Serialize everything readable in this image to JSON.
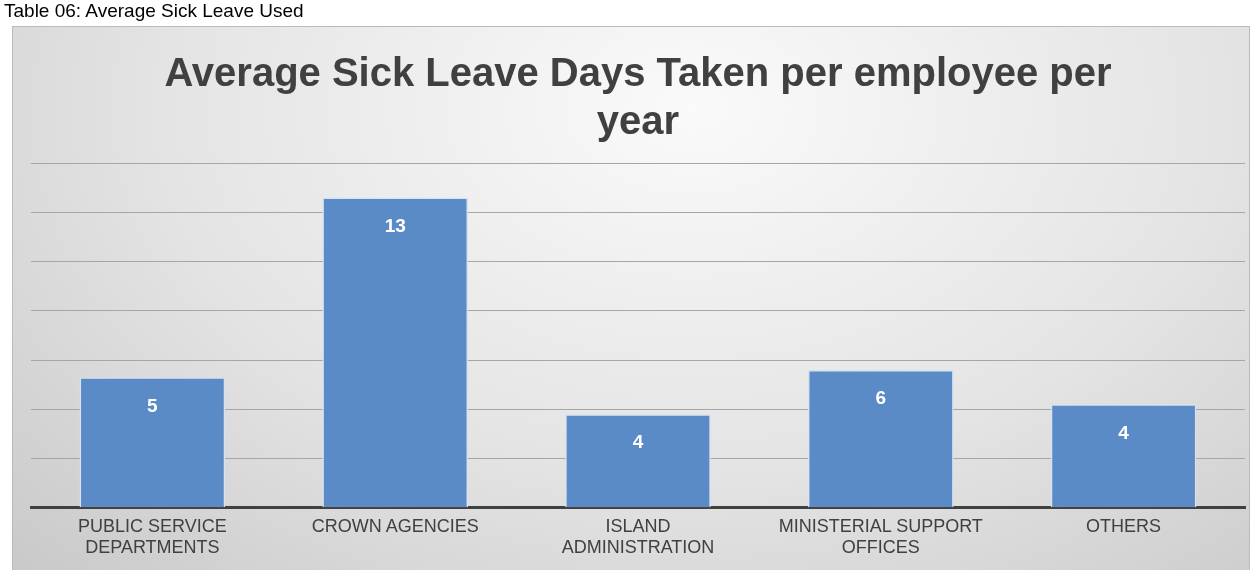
{
  "chart_data": {
    "type": "bar",
    "title": "Average Sick Leave Days Taken per employee per year",
    "categories": [
      "PUBLIC SERVICE DEPARTMENTS",
      "CROWN AGENCIES",
      "ISLAND ADMINISTRATION",
      "MINISTERIAL SUPPORT OFFICES",
      "OTHERS"
    ],
    "values": [
      5.3,
      12.6,
      3.8,
      5.6,
      4.2
    ],
    "value_labels": [
      "5",
      "13",
      "4",
      "6",
      "4"
    ],
    "color": "#5b8bc6",
    "ylim": [
      0,
      14
    ],
    "yticks": [
      {
        "value": 0,
        "label": null
      },
      {
        "value": 2,
        "label": null
      },
      {
        "value": 4,
        "label": null
      },
      {
        "value": 6,
        "label": null
      },
      {
        "value": 8,
        "label": null
      },
      {
        "value": 10,
        "label": null
      },
      {
        "value": 12,
        "label": null
      },
      {
        "value": 14,
        "label": null
      }
    ],
    "grid": "y",
    "legend": false,
    "annotations": [
      "Table 06: Average Sick Leave Used"
    ]
  }
}
